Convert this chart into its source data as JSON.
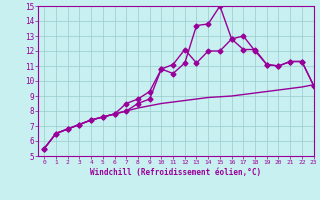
{
  "xlabel": "Windchill (Refroidissement éolien,°C)",
  "xlim": [
    -0.5,
    23
  ],
  "ylim": [
    5,
    15
  ],
  "xticks": [
    0,
    1,
    2,
    3,
    4,
    5,
    6,
    7,
    8,
    9,
    10,
    11,
    12,
    13,
    14,
    15,
    16,
    17,
    18,
    19,
    20,
    21,
    22,
    23
  ],
  "yticks": [
    5,
    6,
    7,
    8,
    9,
    10,
    11,
    12,
    13,
    14,
    15
  ],
  "bg_color": "#c8f0f0",
  "grid_color": "#99cccc",
  "line_color": "#990099",
  "line1_x": [
    0,
    1,
    2,
    3,
    4,
    5,
    6,
    7,
    8,
    9,
    10,
    11,
    12,
    13,
    14,
    15,
    16,
    17,
    18,
    19,
    20,
    21,
    22,
    23
  ],
  "line1_y": [
    5.5,
    6.5,
    6.8,
    7.1,
    7.4,
    7.6,
    7.8,
    8.0,
    8.2,
    8.35,
    8.5,
    8.6,
    8.7,
    8.8,
    8.9,
    8.95,
    9.0,
    9.1,
    9.2,
    9.3,
    9.4,
    9.5,
    9.6,
    9.75
  ],
  "line2_x": [
    0,
    1,
    2,
    3,
    4,
    5,
    6,
    7,
    8,
    9,
    10,
    11,
    12,
    13,
    14,
    15,
    16,
    17,
    18,
    19,
    20,
    21,
    22,
    23
  ],
  "line2_y": [
    5.5,
    6.5,
    6.8,
    7.1,
    7.4,
    7.6,
    7.8,
    8.5,
    8.8,
    9.3,
    10.8,
    11.1,
    12.1,
    11.2,
    12.0,
    12.0,
    12.8,
    12.1,
    12.1,
    11.1,
    11.0,
    11.3,
    11.3,
    9.7
  ],
  "line3_x": [
    0,
    1,
    2,
    3,
    4,
    5,
    6,
    7,
    8,
    9,
    10,
    11,
    12,
    13,
    14,
    15,
    16,
    17,
    18,
    19,
    20,
    21,
    22,
    23
  ],
  "line3_y": [
    5.5,
    6.5,
    6.8,
    7.1,
    7.4,
    7.6,
    7.8,
    8.0,
    8.5,
    8.8,
    10.8,
    10.5,
    11.2,
    13.7,
    13.8,
    15.0,
    12.8,
    13.0,
    12.0,
    11.1,
    11.0,
    11.3,
    11.3,
    9.7
  ],
  "marker2": "D",
  "marker3": "D",
  "markersize": 2.5,
  "linewidth": 1.0
}
